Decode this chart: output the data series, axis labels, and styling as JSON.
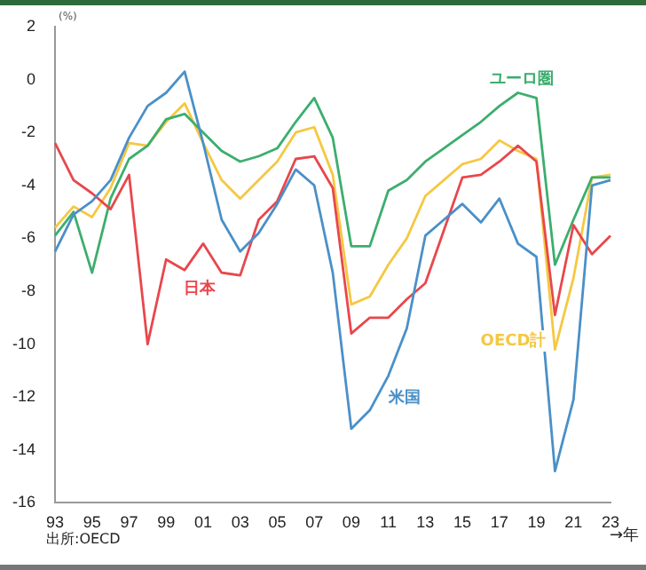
{
  "chart_data": {
    "type": "line",
    "ylabel": "(%)",
    "xlabel": "→年",
    "categories": [
      "93",
      null,
      "95",
      null,
      "97",
      null,
      "99",
      null,
      "01",
      null,
      "03",
      null,
      "05",
      null,
      "07",
      null,
      "09",
      null,
      "11",
      null,
      "13",
      null,
      "15",
      null,
      "17",
      null,
      "19",
      null,
      "21",
      null,
      "23"
    ],
    "series": [
      {
        "name": "米国",
        "color": "#4a90c8",
        "values": [
          -6.5,
          -5.1,
          -4.6,
          -3.8,
          -2.2,
          -1.0,
          -0.5,
          0.3,
          -2.4,
          -5.3,
          -6.5,
          -5.8,
          -4.7,
          -3.4,
          -4.0,
          -7.3,
          -13.2,
          -12.5,
          -11.2,
          -9.4,
          -5.9,
          -5.3,
          -4.7,
          -5.4,
          -4.5,
          -6.2,
          -6.7,
          -14.8,
          -12.1,
          -4.0,
          -3.8
        ]
      },
      {
        "name": "日本",
        "color": "#e8474c",
        "values": [
          -2.4,
          -3.8,
          -4.3,
          -4.9,
          -3.6,
          -10.0,
          -6.8,
          -7.2,
          -6.2,
          -7.3,
          -7.4,
          -5.3,
          -4.6,
          -3.0,
          -2.9,
          -4.1,
          -9.6,
          -9.0,
          -9.0,
          -8.3,
          -7.7,
          -5.7,
          -3.7,
          -3.6,
          -3.1,
          -2.5,
          -3.1,
          -8.9,
          -5.5,
          -6.6,
          -5.9
        ]
      },
      {
        "name": "ユーロ圏",
        "color": "#3cae6e",
        "values": [
          -5.9,
          -5.0,
          -7.3,
          -4.5,
          -3.0,
          -2.5,
          -1.5,
          -1.3,
          -2.0,
          -2.7,
          -3.1,
          -2.9,
          -2.6,
          -1.6,
          -0.7,
          -2.2,
          -6.3,
          -6.3,
          -4.2,
          -3.8,
          -3.1,
          -2.6,
          -2.1,
          -1.6,
          -1.0,
          -0.5,
          -0.7,
          -7.0,
          -5.3,
          -3.7,
          -3.7
        ]
      },
      {
        "name": "OECD計",
        "color": "#f5c842",
        "values": [
          -5.6,
          -4.8,
          -5.2,
          -4.1,
          -2.4,
          -2.5,
          -1.6,
          -0.9,
          -2.4,
          -3.8,
          -4.5,
          -3.8,
          -3.1,
          -2.0,
          -1.8,
          -3.6,
          -8.5,
          -8.2,
          -7.0,
          -6.0,
          -4.4,
          -3.8,
          -3.2,
          -3.0,
          -2.3,
          -2.7,
          -3.0,
          -10.2,
          -7.5,
          -3.7,
          -3.6
        ]
      }
    ],
    "ylim": [
      -16,
      2
    ],
    "yticks": [
      -16,
      -14,
      -12,
      -10,
      -8,
      -6,
      -4,
      -2,
      0,
      2
    ],
    "grid": false,
    "legend": false,
    "marker": "none",
    "line_style": "solid",
    "annotations": [
      "出所:OECD"
    ]
  }
}
